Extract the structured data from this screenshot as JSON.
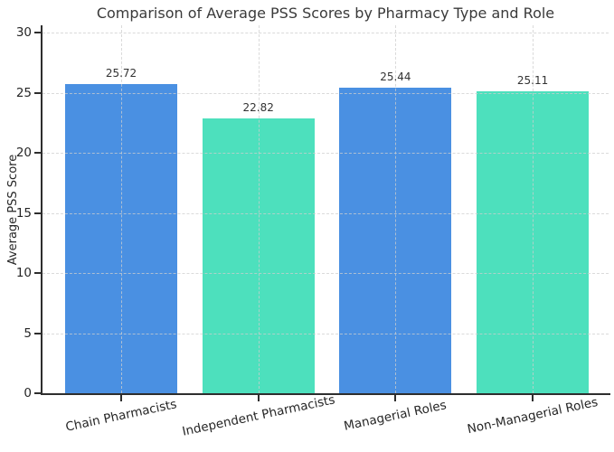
{
  "chart_data": {
    "type": "bar",
    "title": "Comparison of Average PSS Scores by Pharmacy Type and Role",
    "xlabel": "",
    "ylabel": "Average PSS Score",
    "categories": [
      "Chain Pharmacists",
      "Independent Pharmacists",
      "Managerial Roles",
      "Non-Managerial Roles"
    ],
    "values": [
      25.72,
      22.82,
      25.44,
      25.11
    ],
    "value_labels": [
      "25.72",
      "22.82",
      "25.44",
      "25.11"
    ],
    "bar_colors": [
      "#4a90e2",
      "#4de0bd",
      "#4a90e2",
      "#4de0bd"
    ],
    "yticks": [
      0,
      5,
      10,
      15,
      20,
      25,
      30
    ],
    "ylim": [
      0,
      30.6
    ],
    "grid": true,
    "grid_style": "dashed",
    "legend_position": "none"
  },
  "colors": {
    "blue_bar": "#4a90e2",
    "teal_bar": "#4de0bd",
    "axis": "#2e2e2e",
    "grid": "#cdcdcd",
    "text": "#262626",
    "background": "#ffffff"
  }
}
